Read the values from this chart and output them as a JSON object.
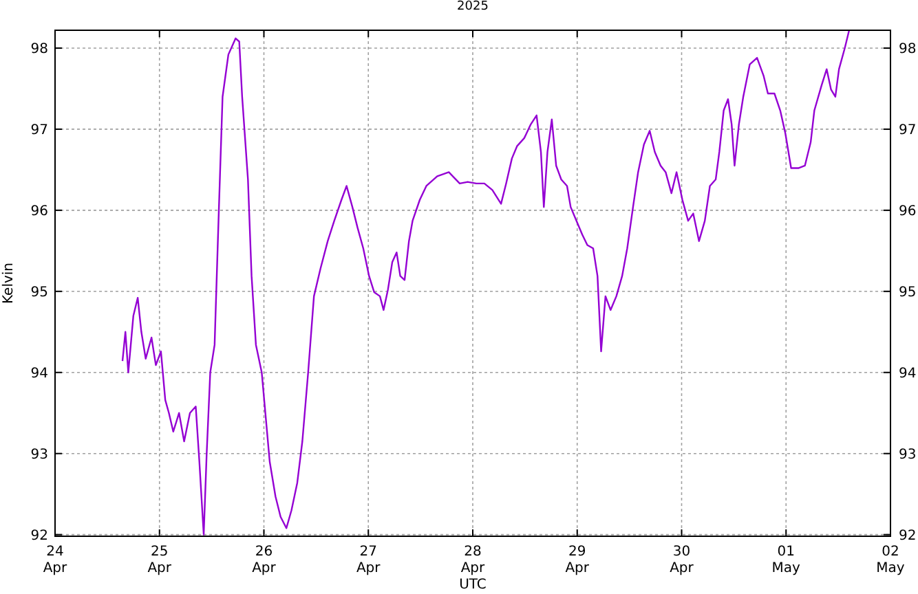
{
  "chart_data": {
    "type": "line",
    "title": "2025",
    "xlabel": "UTC",
    "ylabel": "Kelvin",
    "color": "#9400d3",
    "grid": true,
    "line_style": "solid",
    "xlim": [
      "2025-04-24",
      "2025-05-02"
    ],
    "xticks": [
      {
        "value": "2025-04-24",
        "label": "24\nApr"
      },
      {
        "value": "2025-04-25",
        "label": "25\nApr"
      },
      {
        "value": "2025-04-26",
        "label": "26\nApr"
      },
      {
        "value": "2025-04-27",
        "label": "27\nApr"
      },
      {
        "value": "2025-04-28",
        "label": "28\nApr"
      },
      {
        "value": "2025-04-29",
        "label": "29\nApr"
      },
      {
        "value": "2025-04-30",
        "label": "30\nApr"
      },
      {
        "value": "2025-05-01",
        "label": "01\nMay"
      },
      {
        "value": "2025-05-02",
        "label": "02\nMay"
      }
    ],
    "ylim": [
      91.98,
      98.22
    ],
    "yticks": [
      92,
      93,
      94,
      95,
      96,
      97,
      98
    ],
    "y2lim": [
      91.98,
      98.22
    ],
    "y2ticks": [
      92,
      93,
      94,
      95,
      96,
      97,
      98
    ],
    "x": [
      "2025-04-24T15:30",
      "2025-04-24T16:10",
      "2025-04-24T16:50",
      "2025-04-24T18:00",
      "2025-04-24T19:00",
      "2025-04-24T19:50",
      "2025-04-24T20:50",
      "2025-04-24T22:10",
      "2025-04-24T23:10",
      "2025-04-25T00:20",
      "2025-04-25T01:20",
      "2025-04-25T02:10",
      "2025-04-25T03:10",
      "2025-04-25T04:30",
      "2025-04-25T05:40",
      "2025-04-25T07:00",
      "2025-04-25T08:20",
      "2025-04-25T09:10",
      "2025-04-25T10:10",
      "2025-04-25T10:50",
      "2025-04-25T11:40",
      "2025-04-25T12:40",
      "2025-04-25T13:40",
      "2025-04-25T14:30",
      "2025-04-25T15:50",
      "2025-04-25T17:30",
      "2025-04-25T18:20",
      "2025-04-25T19:00",
      "2025-04-25T20:20",
      "2025-04-25T21:10",
      "2025-04-25T22:10",
      "2025-04-25T23:30",
      "2025-04-26T00:20",
      "2025-04-26T01:20",
      "2025-04-26T02:40",
      "2025-04-26T03:50",
      "2025-04-26T05:10",
      "2025-04-26T06:20",
      "2025-04-26T07:40",
      "2025-04-26T08:50",
      "2025-04-26T10:10",
      "2025-04-26T11:30",
      "2025-04-26T13:00",
      "2025-04-26T14:40",
      "2025-04-26T16:10",
      "2025-04-26T17:50",
      "2025-04-26T19:00",
      "2025-04-26T20:20",
      "2025-04-26T21:30",
      "2025-04-26T22:50",
      "2025-04-27T00:10",
      "2025-04-27T01:20",
      "2025-04-27T02:40",
      "2025-04-27T03:30",
      "2025-04-27T04:30",
      "2025-04-27T05:30",
      "2025-04-27T06:30",
      "2025-04-27T07:20",
      "2025-04-27T08:20",
      "2025-04-27T09:20",
      "2025-04-27T10:10",
      "2025-04-27T11:50",
      "2025-04-27T13:20",
      "2025-04-27T15:50",
      "2025-04-27T18:30",
      "2025-04-27T21:00",
      "2025-04-27T22:50",
      "2025-04-28T00:50",
      "2025-04-28T02:40",
      "2025-04-28T04:30",
      "2025-04-28T06:30",
      "2025-04-28T07:40",
      "2025-04-28T09:00",
      "2025-04-28T10:10",
      "2025-04-28T11:50",
      "2025-04-28T13:20",
      "2025-04-28T14:40",
      "2025-04-28T15:40",
      "2025-04-28T16:20",
      "2025-04-28T17:10",
      "2025-04-28T18:10",
      "2025-04-28T19:10",
      "2025-04-28T20:20",
      "2025-04-28T21:40",
      "2025-04-28T22:30",
      "2025-04-28T23:50",
      "2025-04-29T01:10",
      "2025-04-29T02:20",
      "2025-04-29T03:40",
      "2025-04-29T04:40",
      "2025-04-29T05:30",
      "2025-04-29T06:30",
      "2025-04-29T07:40",
      "2025-04-29T09:00",
      "2025-04-29T10:20",
      "2025-04-29T11:30",
      "2025-04-29T12:50",
      "2025-04-29T14:00",
      "2025-04-29T15:20",
      "2025-04-29T16:40",
      "2025-04-29T17:50",
      "2025-04-29T19:10",
      "2025-04-29T20:20",
      "2025-04-29T21:40",
      "2025-04-29T22:50",
      "2025-04-30T00:10",
      "2025-04-30T01:30",
      "2025-04-30T02:40",
      "2025-04-30T04:00",
      "2025-04-30T05:20",
      "2025-04-30T06:30",
      "2025-04-30T07:50",
      "2025-04-30T08:40",
      "2025-04-30T09:40",
      "2025-04-30T10:40",
      "2025-04-30T11:30",
      "2025-04-30T12:10",
      "2025-04-30T13:10",
      "2025-04-30T14:10",
      "2025-04-30T15:40",
      "2025-04-30T17:20",
      "2025-04-30T18:50",
      "2025-04-30T19:50",
      "2025-04-30T21:20",
      "2025-04-30T22:40",
      "2025-04-30T23:50",
      "2025-05-01T01:10",
      "2025-05-01T02:50",
      "2025-05-01T04:20",
      "2025-05-01T05:40",
      "2025-05-01T06:30",
      "2025-05-01T08:10",
      "2025-05-01T09:20",
      "2025-05-01T10:20",
      "2025-05-01T11:20",
      "2025-05-01T12:10",
      "2025-05-01T13:30",
      "2025-05-01T14:30"
    ],
    "values": [
      94.14,
      94.5,
      94.0,
      94.7,
      94.92,
      94.5,
      94.17,
      94.43,
      94.09,
      94.26,
      93.66,
      93.5,
      93.27,
      93.5,
      93.15,
      93.5,
      93.58,
      92.9,
      92.0,
      92.98,
      94.0,
      94.34,
      96.04,
      97.4,
      97.92,
      98.12,
      98.08,
      97.4,
      96.38,
      95.19,
      94.34,
      94.0,
      93.5,
      92.9,
      92.47,
      92.22,
      92.08,
      92.3,
      92.64,
      93.15,
      94.0,
      94.94,
      95.28,
      95.62,
      95.87,
      96.13,
      96.3,
      96.04,
      95.79,
      95.53,
      95.19,
      94.99,
      94.94,
      94.77,
      95.02,
      95.36,
      95.48,
      95.19,
      95.14,
      95.62,
      95.87,
      96.13,
      96.3,
      96.42,
      96.47,
      96.33,
      96.35,
      96.33,
      96.33,
      96.25,
      96.08,
      96.33,
      96.64,
      96.79,
      96.89,
      97.06,
      97.17,
      96.72,
      96.04,
      96.72,
      97.12,
      96.55,
      96.38,
      96.3,
      96.04,
      95.87,
      95.7,
      95.57,
      95.53,
      95.19,
      94.26,
      94.94,
      94.77,
      94.94,
      95.19,
      95.53,
      96.04,
      96.47,
      96.81,
      96.98,
      96.72,
      96.55,
      96.47,
      96.21,
      96.47,
      96.13,
      95.87,
      95.96,
      95.62,
      95.87,
      96.3,
      96.38,
      96.72,
      97.23,
      97.37,
      97.06,
      96.55,
      97.06,
      97.4,
      97.8,
      97.88,
      97.66,
      97.44,
      97.44,
      97.23,
      96.95,
      96.52,
      96.52,
      96.55,
      96.84,
      97.23,
      97.54,
      97.74,
      97.49,
      97.4,
      97.74,
      98.0,
      98.22
    ]
  }
}
